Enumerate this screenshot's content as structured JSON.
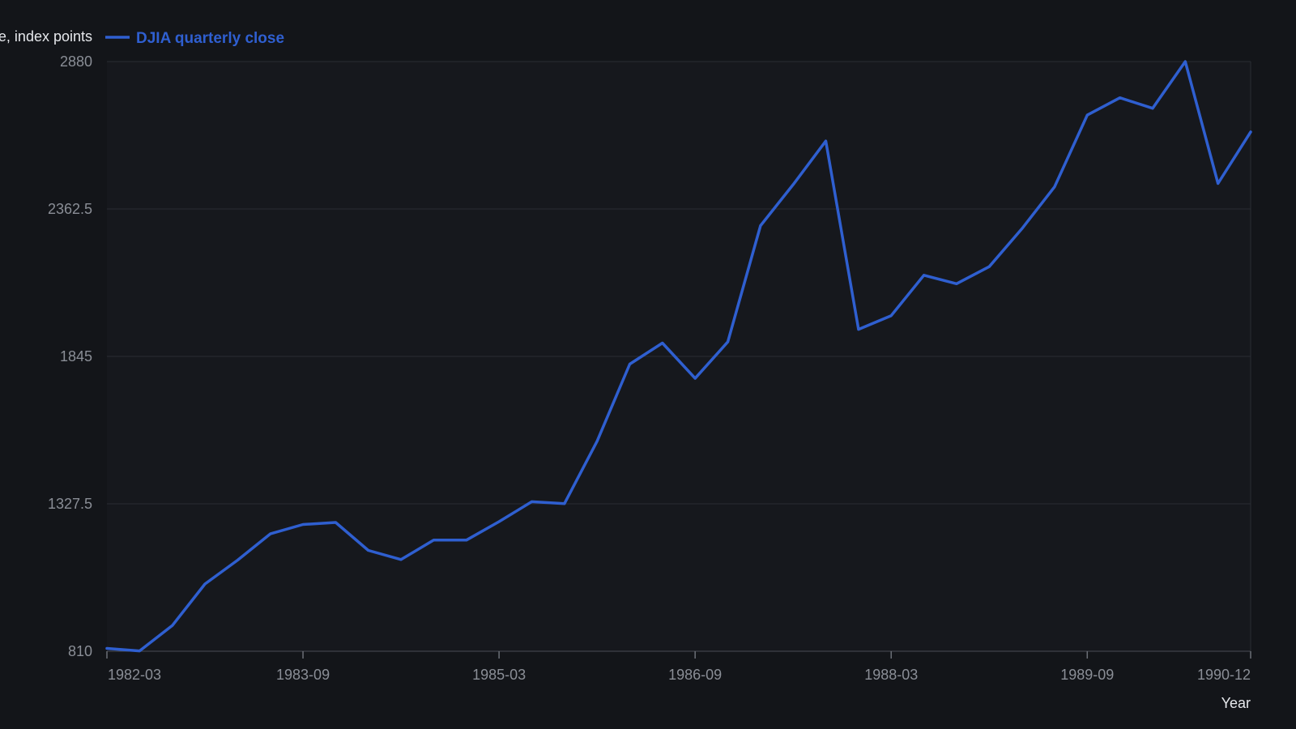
{
  "chart_data": {
    "type": "line",
    "title": "",
    "xlabel": "Year",
    "ylabel": "Close, index points",
    "ylim": [
      810,
      2880
    ],
    "yticks": [
      "810",
      "1327.5",
      "1845",
      "2362.5",
      "2880"
    ],
    "xticks": [
      "1982-03",
      "1983-09",
      "1985-03",
      "1986-09",
      "1988-03",
      "1989-09",
      "1990-12"
    ],
    "grid": true,
    "legend_position": "top-left",
    "x": [
      "1982-03",
      "1982-06",
      "1982-09",
      "1982-12",
      "1983-03",
      "1983-06",
      "1983-09",
      "1983-12",
      "1984-03",
      "1984-06",
      "1984-09",
      "1984-12",
      "1985-03",
      "1985-06",
      "1985-09",
      "1985-12",
      "1986-03",
      "1986-06",
      "1986-09",
      "1986-12",
      "1987-03",
      "1987-06",
      "1987-09",
      "1987-12",
      "1988-03",
      "1988-06",
      "1988-09",
      "1988-12",
      "1989-03",
      "1989-06",
      "1989-09",
      "1989-12",
      "1990-03",
      "1990-06",
      "1990-09",
      "1990-12"
    ],
    "series": [
      {
        "name": "DJIA quarterly close",
        "color": "#2f5fd0",
        "values": [
          820,
          811,
          900,
          1046,
          1130,
          1222,
          1255,
          1262,
          1164,
          1132,
          1200,
          1200,
          1265,
          1335,
          1328,
          1547,
          1818,
          1892,
          1768,
          1896,
          2304,
          2448,
          2601,
          1940,
          1988,
          2130,
          2100,
          2160,
          2293,
          2440,
          2692,
          2753,
          2716,
          2880,
          2452,
          2633
        ]
      }
    ]
  }
}
